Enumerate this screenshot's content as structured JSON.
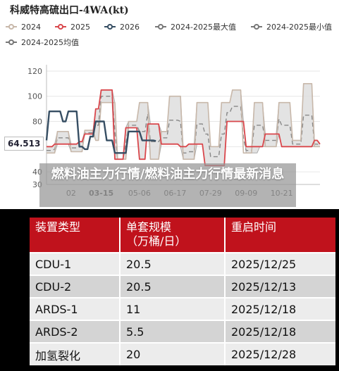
{
  "chart": {
    "title": "科威特高硫出口-4WA(kt)",
    "legend": [
      {
        "name": "2024",
        "color": "#c8b8aa",
        "style": "solid-dot"
      },
      {
        "name": "2025",
        "color": "#d9474c",
        "style": "solid-dot"
      },
      {
        "name": "2026",
        "color": "#364e63",
        "style": "solid-dot"
      },
      {
        "name": "2024-2025最大值",
        "color": "#777777",
        "style": "solid-dot"
      },
      {
        "name": "2024-2025最小值",
        "color": "#777777",
        "style": "solid-dot"
      },
      {
        "name": "2024-2025均值",
        "color": "#777777",
        "style": "solid-dot"
      }
    ],
    "value_flag": "64.513"
  },
  "chart_data": {
    "type": "line",
    "title": "科威特高硫出口-4WA(kt)",
    "xlabel": "",
    "ylabel": "",
    "ylim": [
      30,
      125
    ],
    "y_ticks": [
      "30",
      "40",
      "60",
      "80",
      "100",
      "120"
    ],
    "x_ticks": [
      "02",
      "03-15",
      "05-06",
      "06-17",
      "07-29",
      "09-09",
      "10-21"
    ],
    "grid": true,
    "legend_position": "top",
    "x_positions": [
      0,
      1,
      2,
      3,
      4,
      5,
      6,
      7,
      8,
      9,
      10,
      11,
      12,
      13,
      14,
      15,
      16,
      17,
      18,
      19,
      20,
      21,
      22,
      23,
      24,
      25,
      26,
      27,
      28,
      29,
      30,
      31,
      32,
      33,
      34,
      35,
      36,
      37,
      38,
      39,
      40,
      41,
      42,
      43,
      44,
      45,
      46,
      47,
      48,
      49,
      50,
      51,
      52,
      53,
      54,
      55,
      56,
      57,
      58,
      59,
      60,
      61,
      62,
      63,
      64,
      65,
      66,
      67,
      68,
      69,
      70,
      71,
      72,
      73,
      74,
      75,
      76,
      77,
      78,
      79,
      80,
      81,
      82,
      83,
      84,
      85,
      86,
      87,
      88,
      89,
      90,
      91,
      92,
      93,
      94,
      95,
      96,
      97,
      98,
      99,
      100
    ],
    "series": [
      {
        "name": "2024",
        "values": [
          55,
          55,
          55,
          55,
          72,
          72,
          72,
          72,
          72,
          56,
          56,
          56,
          56,
          56,
          73,
          73,
          73,
          73,
          65,
          65,
          95,
          95,
          95,
          95,
          95,
          95,
          50,
          50,
          50,
          50,
          80,
          80,
          80,
          80,
          95,
          95,
          95,
          95,
          50,
          50,
          50,
          50,
          72,
          72,
          72,
          100,
          100,
          100,
          100,
          100,
          50,
          50,
          50,
          50,
          50,
          95,
          95,
          95,
          95,
          95,
          60,
          60,
          60,
          60,
          95,
          95,
          95,
          95,
          105,
          105,
          105,
          105,
          55,
          55,
          55,
          55,
          95,
          95,
          95,
          95,
          60,
          60,
          60,
          60,
          60,
          95,
          95,
          95,
          95,
          95,
          65,
          65,
          65,
          65,
          110,
          110,
          110,
          110,
          60,
          60,
          60
        ]
      },
      {
        "name": "2025",
        "values": [
          60,
          60,
          60,
          62,
          62,
          62,
          62,
          62,
          62,
          62,
          62,
          62,
          64,
          64,
          70,
          70,
          70,
          70,
          90,
          90,
          105,
          105,
          105,
          105,
          105,
          50,
          50,
          50,
          50,
          75,
          75,
          75,
          75,
          75,
          50,
          50,
          50,
          78,
          78,
          78,
          78,
          78,
          62,
          62,
          62,
          62,
          62,
          62,
          62,
          60,
          60,
          60,
          62,
          62,
          62,
          62,
          62,
          62,
          45,
          45,
          45,
          45,
          45,
          45,
          45,
          45,
          80,
          80,
          80,
          80,
          80,
          80,
          80,
          60,
          60,
          60,
          60,
          60,
          60,
          60,
          70,
          70,
          70,
          70,
          70,
          70,
          60,
          60,
          60,
          60,
          60,
          60,
          60,
          60,
          60,
          60,
          60,
          60,
          65,
          65,
          62
        ]
      },
      {
        "name": "2026",
        "values": [
          65,
          88,
          88,
          88,
          88,
          88,
          80,
          80,
          88,
          88,
          88,
          88,
          60,
          60,
          58,
          58,
          68,
          68,
          80,
          80,
          80,
          80,
          65,
          65,
          65,
          55,
          55,
          55,
          55,
          55,
          72,
          72,
          72,
          72,
          72,
          65,
          65,
          65,
          65,
          65,
          64.5
        ]
      },
      {
        "name": "2024-2025最大值",
        "values": [
          60,
          60,
          60,
          62,
          72,
          72,
          72,
          72,
          72,
          62,
          62,
          62,
          64,
          64,
          73,
          73,
          73,
          73,
          90,
          90,
          105,
          105,
          105,
          105,
          105,
          95,
          50,
          50,
          50,
          75,
          80,
          80,
          80,
          80,
          95,
          95,
          95,
          95,
          78,
          78,
          78,
          78,
          72,
          72,
          72,
          100,
          100,
          100,
          100,
          100,
          60,
          60,
          62,
          62,
          62,
          95,
          95,
          95,
          95,
          95,
          60,
          60,
          60,
          60,
          95,
          95,
          95,
          95,
          105,
          105,
          105,
          105,
          80,
          60,
          60,
          60,
          95,
          95,
          95,
          95,
          70,
          70,
          70,
          70,
          70,
          95,
          95,
          95,
          95,
          95,
          65,
          65,
          65,
          65,
          110,
          110,
          110,
          110,
          65,
          65,
          62
        ]
      },
      {
        "name": "2024-2025最小值",
        "values": [
          55,
          55,
          55,
          55,
          62,
          62,
          62,
          62,
          62,
          56,
          56,
          56,
          56,
          56,
          70,
          70,
          70,
          70,
          65,
          65,
          95,
          95,
          95,
          95,
          95,
          50,
          50,
          50,
          50,
          50,
          75,
          75,
          75,
          75,
          50,
          50,
          50,
          78,
          50,
          50,
          50,
          50,
          62,
          62,
          62,
          62,
          62,
          62,
          62,
          60,
          50,
          50,
          50,
          50,
          50,
          62,
          62,
          62,
          45,
          45,
          45,
          45,
          45,
          45,
          45,
          45,
          80,
          80,
          80,
          80,
          80,
          80,
          80,
          55,
          55,
          55,
          55,
          55,
          60,
          60,
          60,
          60,
          60,
          60,
          60,
          70,
          60,
          60,
          60,
          60,
          60,
          60,
          60,
          60,
          60,
          60,
          60,
          60,
          60,
          60,
          60
        ]
      },
      {
        "name": "2024-2025均值",
        "values": [
          57,
          57,
          57,
          58,
          67,
          67,
          67,
          67,
          67,
          59,
          59,
          59,
          60,
          60,
          71,
          71,
          71,
          71,
          77,
          77,
          100,
          100,
          100,
          100,
          100,
          72,
          50,
          50,
          50,
          62,
          77,
          77,
          77,
          77,
          72,
          72,
          72,
          86,
          64,
          64,
          64,
          64,
          67,
          67,
          67,
          81,
          81,
          81,
          81,
          80,
          55,
          55,
          56,
          56,
          56,
          78,
          78,
          78,
          70,
          70,
          52,
          52,
          52,
          52,
          70,
          70,
          87,
          87,
          92,
          92,
          92,
          92,
          67,
          57,
          57,
          57,
          77,
          77,
          77,
          77,
          65,
          65,
          65,
          65,
          65,
          82,
          77,
          77,
          77,
          77,
          62,
          62,
          62,
          62,
          85,
          85,
          85,
          85,
          62,
          62,
          61
        ]
      }
    ]
  },
  "overlay": {
    "headline": "燃料油主力行情/燃料油主力行情最新消息"
  },
  "table": {
    "headers": [
      "装置类型",
      "单套规模\n（万桶/日）",
      "重启时间"
    ],
    "rows": [
      [
        "CDU-1",
        "20.5",
        "2025/12/25"
      ],
      [
        "CDU-2",
        "20.5",
        "2025/12/13"
      ],
      [
        "ARDS-1",
        "11",
        "2025/12/18"
      ],
      [
        "ARDS-2",
        "5.5",
        "2025/12/18"
      ],
      [
        "加氢裂化",
        "20",
        "2025/12/28"
      ]
    ]
  }
}
